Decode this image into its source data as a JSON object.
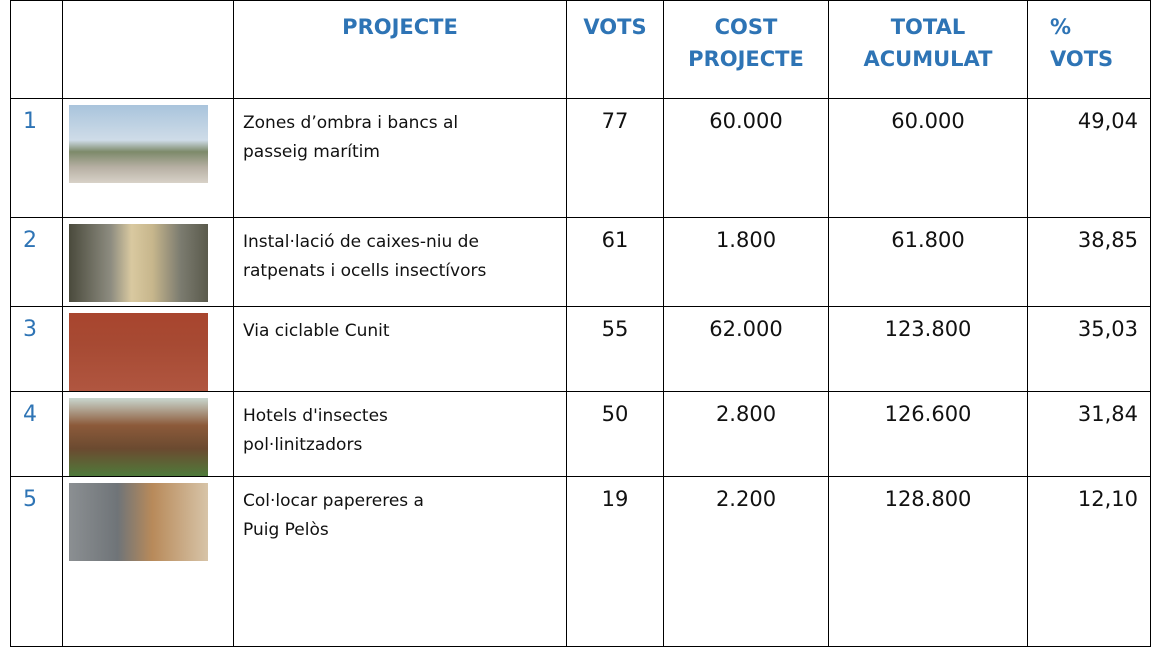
{
  "table": {
    "header": [
      [
        "PROJECTE"
      ],
      [
        "VOTS"
      ],
      [
        "COST",
        "PROJECTE"
      ],
      [
        "TOTAL",
        "ACUMULAT"
      ],
      [
        "%",
        "VOTS"
      ]
    ],
    "rows": [
      {
        "number": "1",
        "project": [
          "Zones d’ombra i bancs al",
          "passeig marítim"
        ],
        "votes": "77",
        "cost": "60.000",
        "total": "60.000",
        "percent": "49,04"
      },
      {
        "number": "2",
        "project": [
          "Instal·lació de caixes-niu de",
          "ratpenats i ocells insectívors"
        ],
        "votes": "61",
        "cost": "1.800",
        "total": "61.800",
        "percent": "38,85"
      },
      {
        "number": "3",
        "project": [
          "Via ciclable Cunit"
        ],
        "votes": "55",
        "cost": "62.000",
        "total": "123.800",
        "percent": "35,03"
      },
      {
        "number": "4",
        "project": [
          "Hotels d'insectes",
          "pol·linitzadors"
        ],
        "votes": "50",
        "cost": "2.800",
        "total": "126.600",
        "percent": "31,84"
      },
      {
        "number": "5",
        "project": [
          "Col·locar papereres a",
          "Puig Pelòs"
        ],
        "votes": "19",
        "cost": "2.200",
        "total": "128.800",
        "percent": "12,10"
      }
    ]
  }
}
